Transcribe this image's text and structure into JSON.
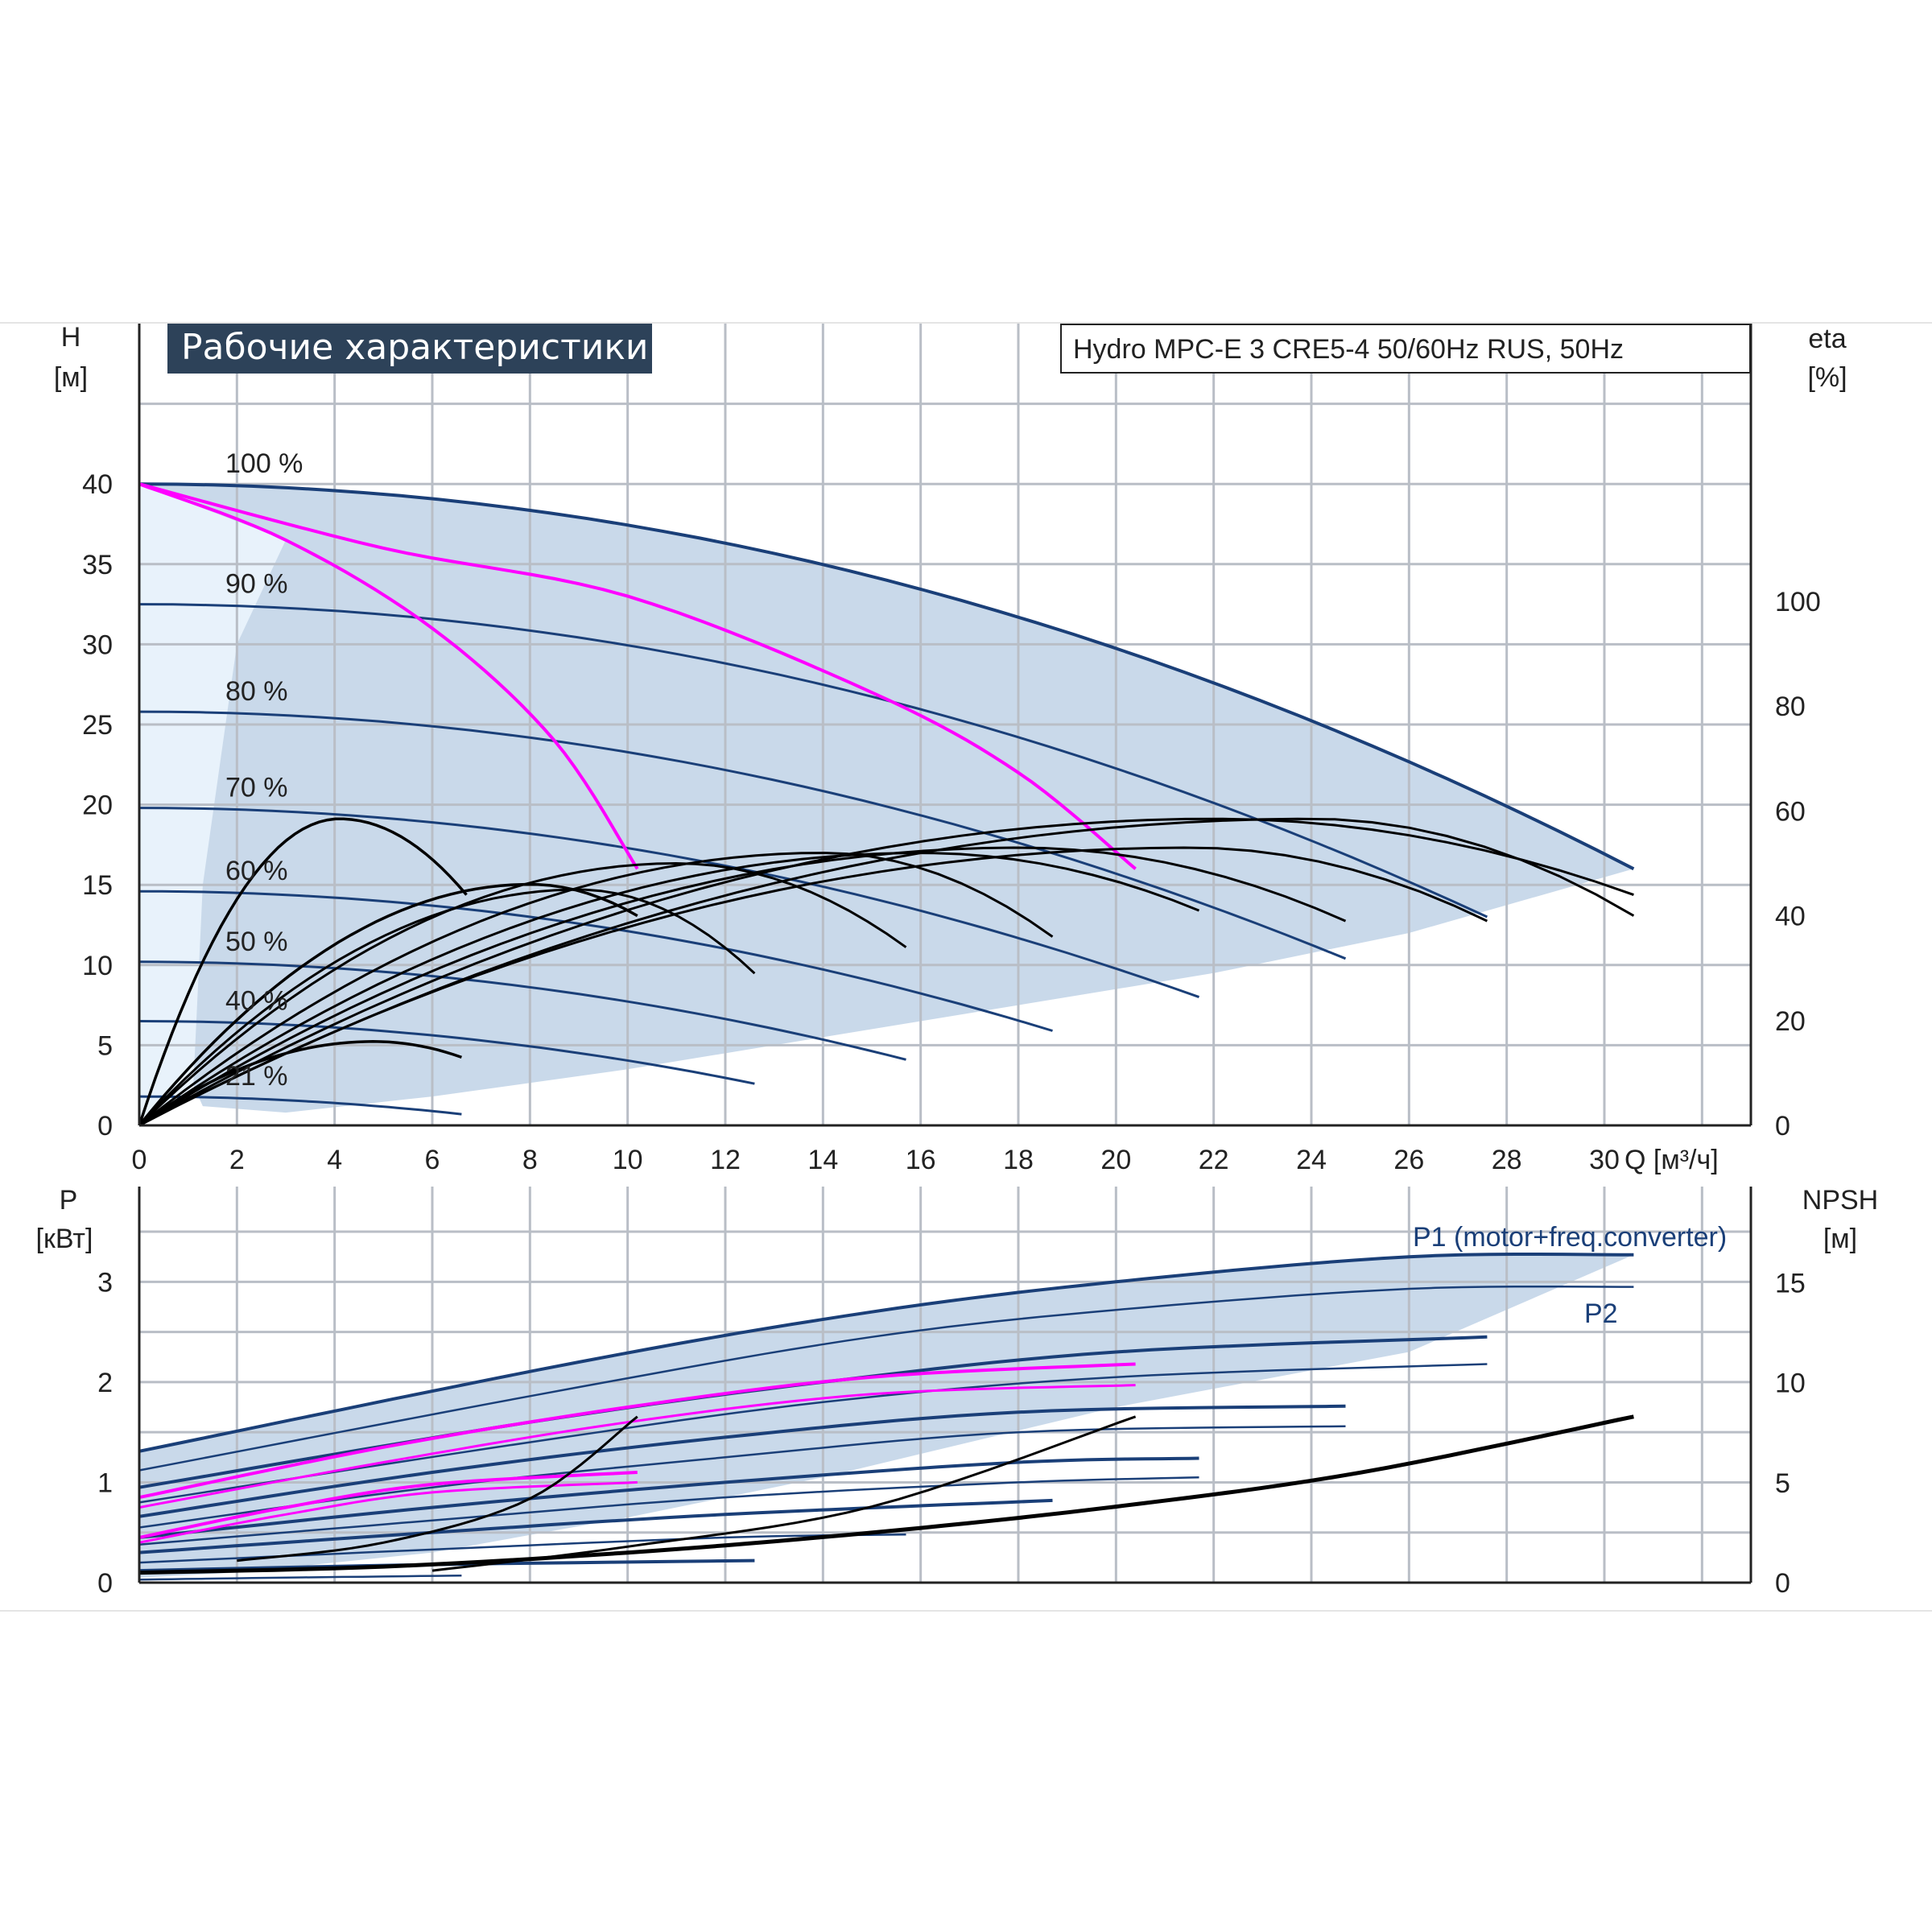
{
  "chart_data": [
    {
      "type": "line",
      "title": "Рабочие характеристики",
      "subtitle": "Hydro MPC-E 3 CRE5-4 50/60Hz RUS, 50Hz",
      "xlabel": "Q [м³/ч]",
      "ylabel": "H",
      "ylabel_unit": "[м]",
      "y2label": "eta",
      "y2label_unit": "[%]",
      "xlim": [
        0,
        33
      ],
      "ylim": [
        0,
        50
      ],
      "y2lim": [
        0,
        153
      ],
      "xticks": [
        "0",
        "2",
        "4",
        "6",
        "8",
        "10",
        "12",
        "14",
        "16",
        "18",
        "20",
        "22",
        "24",
        "26",
        "28",
        "30"
      ],
      "yticks": [
        "0",
        "5",
        "10",
        "15",
        "20",
        "25",
        "30",
        "35",
        "40"
      ],
      "y2ticks": [
        "0",
        "20",
        "40",
        "60",
        "80",
        "100"
      ],
      "grid": true,
      "colors": {
        "pump_curve": "#1a3f78",
        "limit_curve": "#ff00ff",
        "efficiency": "#000000",
        "envelope_fill": "#c9d9ea",
        "envelope_light": "#e8f2fb",
        "title_bg": "#2d4259"
      },
      "speed_labels": [
        "100 %",
        "90 %",
        "80 %",
        "70 %",
        "60 %",
        "50 %",
        "40 %",
        "21 %"
      ],
      "series": [
        {
          "speed": 1.0,
          "shutoff_head": 40.0,
          "max_flow": 30.6,
          "end_head": 16.0
        },
        {
          "speed": 0.9,
          "shutoff_head": 32.5,
          "max_flow": 27.6,
          "end_head": 13.0
        },
        {
          "speed": 0.8,
          "shutoff_head": 25.8,
          "max_flow": 24.7,
          "end_head": 10.4
        },
        {
          "speed": 0.7,
          "shutoff_head": 19.8,
          "max_flow": 21.7,
          "end_head": 8.0
        },
        {
          "speed": 0.6,
          "shutoff_head": 14.6,
          "max_flow": 18.7,
          "end_head": 5.9
        },
        {
          "speed": 0.5,
          "shutoff_head": 10.2,
          "max_flow": 15.7,
          "end_head": 4.1
        },
        {
          "speed": 0.4,
          "shutoff_head": 6.5,
          "max_flow": 12.6,
          "end_head": 2.6
        },
        {
          "speed": 0.21,
          "shutoff_head": 1.8,
          "max_flow": 6.6,
          "end_head": 0.7
        }
      ],
      "limit_curves": [
        {
          "points": [
            [
              0,
              40
            ],
            [
              3,
              36.5
            ],
            [
              6,
              31
            ],
            [
              8.5,
              24
            ],
            [
              10.2,
              16
            ]
          ]
        },
        {
          "points": [
            [
              0,
              40
            ],
            [
              5,
              36
            ],
            [
              10,
              33
            ],
            [
              15,
              27
            ],
            [
              18,
              22
            ],
            [
              20.4,
              16
            ]
          ]
        }
      ],
      "eta_curves": [
        {
          "peak_flow": 24,
          "peak_eta": 58.5,
          "max_flow": 30.6,
          "end_eta": 40
        },
        {
          "peak_flow": 22,
          "peak_eta": 58.5,
          "max_flow": 30.6,
          "end_eta": 44
        },
        {
          "peak_flow": 21.5,
          "peak_eta": 53,
          "max_flow": 27.6,
          "end_eta": 39
        },
        {
          "peak_flow": 18,
          "peak_eta": 53,
          "max_flow": 24.7,
          "end_eta": 39
        },
        {
          "peak_flow": 16,
          "peak_eta": 52,
          "max_flow": 21.7,
          "end_eta": 41
        },
        {
          "peak_flow": 14,
          "peak_eta": 52,
          "max_flow": 18.7,
          "end_eta": 36
        },
        {
          "peak_flow": 11,
          "peak_eta": 50,
          "max_flow": 15.7,
          "end_eta": 34
        },
        {
          "peak_flow": 9,
          "peak_eta": 45,
          "max_flow": 12.6,
          "end_eta": 29
        },
        {
          "peak_flow": 4.1,
          "peak_eta": 58.5,
          "max_flow": 6.7,
          "end_eta": 44
        },
        {
          "peak_flow": 4.8,
          "peak_eta": 16,
          "max_flow": 6.6,
          "end_eta": 13
        },
        {
          "peak_flow": 8,
          "peak_eta": 46,
          "max_flow": 10.2,
          "end_eta": 40
        }
      ]
    },
    {
      "type": "line",
      "ylabel": "P",
      "ylabel_unit": "[кВт]",
      "y2label": "NPSH",
      "y2label_unit": "[м]",
      "xlim": [
        0,
        33
      ],
      "ylim": [
        0,
        3.95
      ],
      "y2lim": [
        0,
        19.8
      ],
      "yticks": [
        "0",
        "1",
        "2",
        "3"
      ],
      "y2ticks": [
        "0",
        "5",
        "10",
        "15"
      ],
      "grid": true,
      "series_labels": {
        "p1": "P1 (motor+freq.converter)",
        "p2": "P2"
      },
      "series": [
        {
          "name": "P1 (motor+freq.converter)",
          "x": [
            0,
            9,
            15,
            20,
            26,
            30.6
          ],
          "y": [
            1.31,
            2.2,
            2.7,
            3.0,
            3.25,
            3.27
          ]
        },
        {
          "name": "P2",
          "x": [
            0,
            9,
            15,
            20,
            26,
            30.6
          ],
          "y": [
            1.12,
            1.95,
            2.45,
            2.72,
            2.93,
            2.95
          ]
        },
        {
          "x": [
            0,
            8,
            14,
            20,
            27.6
          ],
          "y": [
            0.95,
            1.6,
            2.0,
            2.3,
            2.45
          ]
        },
        {
          "x": [
            0,
            8,
            14,
            20,
            27.6
          ],
          "y": [
            0.8,
            1.4,
            1.8,
            2.05,
            2.18
          ]
        },
        {
          "x": [
            0,
            6,
            12,
            18,
            24.7
          ],
          "y": [
            0.66,
            1.1,
            1.45,
            1.7,
            1.76
          ]
        },
        {
          "x": [
            0,
            6,
            12,
            18,
            24.7
          ],
          "y": [
            0.55,
            0.95,
            1.25,
            1.5,
            1.56
          ]
        },
        {
          "x": [
            0,
            6,
            12,
            18,
            21.7
          ],
          "y": [
            0.45,
            0.75,
            1.0,
            1.2,
            1.24
          ]
        },
        {
          "x": [
            0,
            6,
            12,
            18,
            21.7
          ],
          "y": [
            0.38,
            0.62,
            0.85,
            1.0,
            1.05
          ]
        },
        {
          "x": [
            0,
            6,
            12,
            18.7
          ],
          "y": [
            0.3,
            0.5,
            0.68,
            0.82
          ]
        },
        {
          "x": [
            0,
            6,
            12,
            15.7
          ],
          "y": [
            0.2,
            0.33,
            0.45,
            0.48
          ]
        },
        {
          "x": [
            0,
            6,
            12.6
          ],
          "y": [
            0.12,
            0.18,
            0.22
          ]
        },
        {
          "x": [
            0,
            3,
            6.6
          ],
          "y": [
            0.03,
            0.05,
            0.07
          ]
        }
      ],
      "limit_series": [
        {
          "x": [
            0,
            5,
            10,
            15,
            20.4
          ],
          "y": [
            0.85,
            1.35,
            1.75,
            2.05,
            2.18
          ]
        },
        {
          "x": [
            0,
            5,
            10,
            15,
            20.4
          ],
          "y": [
            0.75,
            1.2,
            1.6,
            1.88,
            1.97
          ]
        },
        {
          "x": [
            0,
            3,
            6,
            10.2
          ],
          "y": [
            0.45,
            0.75,
            0.98,
            1.1
          ]
        },
        {
          "x": [
            0,
            3,
            6,
            10.2
          ],
          "y": [
            0.4,
            0.68,
            0.9,
            1.0
          ]
        }
      ],
      "npsh_series": [
        {
          "x": [
            0,
            5,
            10,
            15,
            20,
            25,
            30.6
          ],
          "y": [
            0.5,
            0.8,
            1.5,
            2.5,
            3.8,
            5.5,
            8.3
          ]
        },
        {
          "x": [
            2,
            5,
            8,
            10.2
          ],
          "y": [
            1.1,
            2.0,
            4.2,
            8.3
          ]
        },
        {
          "x": [
            6,
            10,
            15,
            20.4
          ],
          "y": [
            0.6,
            1.8,
            3.8,
            8.3
          ]
        }
      ]
    }
  ]
}
